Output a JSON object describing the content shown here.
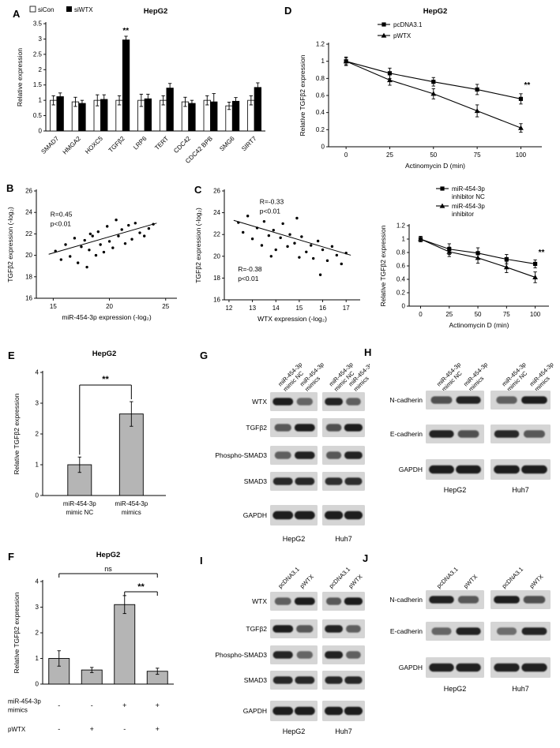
{
  "figure": {
    "background": "#ffffff",
    "bar_gray": "#b5b5b5",
    "ink": "#000000"
  },
  "panels": [
    {
      "id": "A",
      "letter": "A"
    },
    {
      "id": "B",
      "letter": "B"
    },
    {
      "id": "C",
      "letter": "C"
    },
    {
      "id": "D",
      "letter": "D"
    },
    {
      "id": "E",
      "letter": "E"
    },
    {
      "id": "F",
      "letter": "F"
    },
    {
      "id": "G",
      "letter": "G"
    },
    {
      "id": "H",
      "letter": "H"
    },
    {
      "id": "I",
      "letter": "I"
    },
    {
      "id": "J",
      "letter": "J"
    }
  ],
  "chart_data": [
    {
      "panel": "A",
      "type": "bar",
      "title": "HepG2",
      "ylabel": "Relative expression",
      "ylim": [
        0,
        3.5
      ],
      "yticks": [
        0,
        0.5,
        1,
        1.5,
        2,
        2.5,
        3,
        3.5
      ],
      "categories": [
        "SMAD7",
        "HMGA2",
        "HOXC5",
        "TGFβ2",
        "LRP6",
        "TERT",
        "CDC42",
        "CDC42 BPB",
        "SMG6",
        "SIRT7"
      ],
      "series": [
        {
          "name": "siCon",
          "fill": "#ffffff",
          "values": [
            1.0,
            0.95,
            1.0,
            1.0,
            1.0,
            1.0,
            0.95,
            1.0,
            0.82,
            1.0
          ],
          "errors": [
            0.15,
            0.15,
            0.18,
            0.15,
            0.2,
            0.15,
            0.15,
            0.15,
            0.12,
            0.15
          ]
        },
        {
          "name": "siWTX",
          "fill": "#000000",
          "values": [
            1.12,
            0.9,
            1.03,
            2.97,
            1.05,
            1.4,
            0.9,
            0.95,
            0.97,
            1.42
          ],
          "errors": [
            0.12,
            0.1,
            0.15,
            0.12,
            0.15,
            0.15,
            0.1,
            0.27,
            0.12,
            0.15
          ]
        }
      ],
      "sig": {
        "category_index": 3,
        "series_index": 1,
        "label": "**"
      }
    },
    {
      "panel": "B",
      "type": "scatter",
      "xlabel": "miR-454-3p expression (-log₂)",
      "ylabel": "TGFβ2 expression (-log₂)",
      "xlim": [
        13.5,
        26
      ],
      "xticks": [
        15,
        20,
        25
      ],
      "ylim": [
        16,
        26
      ],
      "yticks": [
        16,
        18,
        20,
        22,
        24,
        26
      ],
      "points": [
        [
          15.2,
          20.4
        ],
        [
          15.7,
          19.6
        ],
        [
          16.1,
          21.0
        ],
        [
          16.5,
          19.9
        ],
        [
          16.9,
          21.6
        ],
        [
          17.2,
          19.3
        ],
        [
          17.5,
          20.8
        ],
        [
          17.8,
          21.4
        ],
        [
          18.0,
          18.9
        ],
        [
          18.2,
          20.5
        ],
        [
          18.3,
          22.0
        ],
        [
          18.5,
          21.8
        ],
        [
          18.8,
          20.0
        ],
        [
          19.0,
          22.2
        ],
        [
          19.2,
          21.0
        ],
        [
          19.5,
          20.3
        ],
        [
          19.8,
          22.7
        ],
        [
          20.0,
          21.3
        ],
        [
          20.3,
          20.7
        ],
        [
          20.6,
          23.3
        ],
        [
          20.8,
          21.8
        ],
        [
          21.1,
          22.4
        ],
        [
          21.4,
          21.1
        ],
        [
          21.7,
          22.8
        ],
        [
          22.0,
          21.5
        ],
        [
          22.3,
          23.0
        ],
        [
          22.7,
          22.1
        ],
        [
          23.1,
          21.8
        ],
        [
          23.5,
          22.5
        ],
        [
          23.9,
          22.9
        ]
      ],
      "trend": [
        [
          14.6,
          20.1
        ],
        [
          24.2,
          23.0
        ]
      ],
      "annotations": [
        {
          "lines": [
            "R=0.45",
            "p<0.01"
          ]
        }
      ]
    },
    {
      "panel": "C",
      "type": "scatter",
      "xlabel": "WTX expression (-log₂)",
      "ylabel": "TGFβ2 expression (-log₂)",
      "xlim": [
        11.8,
        17.6
      ],
      "xticks": [
        12,
        13,
        14,
        15,
        16,
        17
      ],
      "ylim": [
        16,
        26
      ],
      "yticks": [
        16,
        18,
        20,
        22,
        24,
        26
      ],
      "points": [
        [
          12.4,
          23.1
        ],
        [
          12.6,
          22.2
        ],
        [
          12.8,
          23.7
        ],
        [
          13.0,
          21.6
        ],
        [
          13.2,
          22.6
        ],
        [
          13.4,
          21.0
        ],
        [
          13.5,
          23.2
        ],
        [
          13.7,
          21.9
        ],
        [
          13.8,
          20.0
        ],
        [
          13.9,
          22.4
        ],
        [
          14.0,
          20.6
        ],
        [
          14.2,
          21.7
        ],
        [
          14.3,
          23.0
        ],
        [
          14.5,
          20.9
        ],
        [
          14.6,
          22.0
        ],
        [
          14.8,
          21.2
        ],
        [
          14.9,
          23.5
        ],
        [
          15.0,
          19.9
        ],
        [
          15.1,
          21.8
        ],
        [
          15.3,
          20.4
        ],
        [
          15.5,
          21.0
        ],
        [
          15.6,
          19.8
        ],
        [
          15.8,
          21.4
        ],
        [
          15.9,
          18.3
        ],
        [
          16.0,
          20.6
        ],
        [
          16.2,
          19.6
        ],
        [
          16.4,
          20.9
        ],
        [
          16.6,
          20.1
        ],
        [
          16.8,
          19.3
        ],
        [
          17.0,
          20.3
        ]
      ],
      "trend": [
        [
          12.2,
          23.3
        ],
        [
          17.2,
          20.1
        ]
      ],
      "annotations": [
        {
          "lines": [
            "R=-0.33",
            "p<0.01"
          ]
        },
        {
          "lines": [
            "R=-0.38",
            "p<0.01"
          ]
        }
      ]
    },
    {
      "panel": "D",
      "type": "line",
      "title": "HepG2",
      "ylabel": "Relative TGFβ2 expression",
      "xlabel": "Actinomycin D (min)",
      "x": [
        0,
        25,
        50,
        75,
        100
      ],
      "xticks": [
        0,
        25,
        50,
        75,
        100
      ],
      "xlim": [
        -10,
        112
      ],
      "ylim": [
        0,
        1.2
      ],
      "yticks": [
        0,
        0.2,
        0.4,
        0.6,
        0.8,
        1,
        1.2
      ],
      "series": [
        {
          "name": "pcDNA3.1",
          "marker": "square",
          "values": [
            1.0,
            0.86,
            0.76,
            0.67,
            0.56
          ],
          "errors": [
            0.05,
            0.06,
            0.05,
            0.06,
            0.06
          ]
        },
        {
          "name": "pWTX",
          "marker": "triangle",
          "values": [
            1.0,
            0.78,
            0.62,
            0.42,
            0.22
          ],
          "errors": [
            0.04,
            0.06,
            0.06,
            0.07,
            0.05
          ]
        }
      ],
      "sig": {
        "x": 100,
        "y": 0.72,
        "label": "**"
      }
    },
    {
      "panel": "D2",
      "type": "line",
      "ylabel": "Relative TGFβ2 expression",
      "xlabel": "Actinomycin D (min)",
      "x": [
        0,
        25,
        50,
        75,
        100
      ],
      "xticks": [
        0,
        25,
        50,
        75,
        100
      ],
      "xlim": [
        -10,
        112
      ],
      "ylim": [
        0,
        1.2
      ],
      "yticks": [
        0,
        0.2,
        0.4,
        0.6,
        0.8,
        1,
        1.2
      ],
      "series": [
        {
          "name_lines": [
            "miR-454-3p",
            "inhibitor NC"
          ],
          "marker": "square",
          "values": [
            1.0,
            0.85,
            0.79,
            0.7,
            0.63
          ],
          "errors": [
            0.04,
            0.08,
            0.08,
            0.07,
            0.06
          ]
        },
        {
          "name_lines": [
            "miR-454-3p",
            "inhibitor"
          ],
          "marker": "triangle",
          "values": [
            1.0,
            0.81,
            0.72,
            0.58,
            0.43
          ],
          "errors": [
            0.04,
            0.07,
            0.08,
            0.08,
            0.08
          ]
        }
      ],
      "sig": {
        "x": 100,
        "y": 0.8,
        "label": "**"
      }
    },
    {
      "panel": "E",
      "type": "bar",
      "title": "HepG2",
      "ylabel": "Relative TGFβ2 expression",
      "ylim": [
        0,
        4
      ],
      "yticks": [
        0,
        1,
        2,
        3,
        4
      ],
      "bar_fill": "#b5b5b5",
      "categories": [
        [
          "miR-454-3p",
          "mimic NC"
        ],
        [
          "miR-454-3p",
          "mimics"
        ]
      ],
      "values": [
        1.0,
        2.65
      ],
      "errors": [
        0.25,
        0.4
      ],
      "brackets": [
        {
          "from": 0,
          "to": 1,
          "label": "**"
        }
      ]
    },
    {
      "panel": "F",
      "type": "bar",
      "title": "HepG2",
      "ylabel": "Relative TGFβ2 expression",
      "ylim": [
        0,
        4
      ],
      "yticks": [
        0,
        1,
        2,
        3,
        4
      ],
      "bar_fill": "#b5b5b5",
      "values": [
        1.0,
        0.55,
        3.1,
        0.5
      ],
      "errors": [
        0.3,
        0.1,
        0.35,
        0.12
      ],
      "brackets": [
        {
          "from": 0,
          "to": 3,
          "label": "ns"
        },
        {
          "from": 2,
          "to": 3,
          "label": "**"
        }
      ],
      "conditions": [
        {
          "label_lines": [
            "miR-454-3p",
            "mimics"
          ],
          "values": [
            "-",
            "-",
            "+",
            "+"
          ]
        },
        {
          "label_lines": [
            "pWTX"
          ],
          "values": [
            "-",
            "+",
            "-",
            "+"
          ]
        }
      ]
    }
  ],
  "blots": [
    {
      "panel": "G",
      "col_labels": [
        [
          "miR-454-3p",
          "mimic NC"
        ],
        [
          "miR-454-3p",
          "mimics"
        ],
        [
          "miR-454-3p",
          "mimic NC"
        ],
        [
          "miR-454-3p",
          "mimics"
        ]
      ],
      "groups": [
        "HepG2",
        "Huh7"
      ],
      "rows": [
        {
          "label": "WTX",
          "bands": [
            [
              0.95,
              0.4
            ],
            [
              0.9,
              0.45
            ]
          ]
        },
        {
          "label": "TGFβ2",
          "bands": [
            [
              0.5,
              0.95
            ],
            [
              0.55,
              0.95
            ]
          ]
        },
        {
          "label": "Phospho-SMAD3",
          "bands": [
            [
              0.45,
              0.92
            ],
            [
              0.5,
              0.9
            ]
          ]
        },
        {
          "label": "SMAD3",
          "bands": [
            [
              0.85,
              0.85
            ],
            [
              0.82,
              0.82
            ]
          ]
        },
        {
          "label": "GAPDH",
          "bands": [
            [
              0.95,
              0.95
            ],
            [
              0.95,
              0.95
            ]
          ]
        }
      ]
    },
    {
      "panel": "H",
      "col_labels": [
        [
          "miR-454-3p",
          "mimic NC"
        ],
        [
          "miR-454-3p",
          "mimics"
        ],
        [
          "miR-454-3p",
          "mimic NC"
        ],
        [
          "miR-454-3p",
          "mimics"
        ]
      ],
      "groups": [
        "HepG2",
        "Huh7"
      ],
      "rows": [
        {
          "label": "N-cadherin",
          "bands": [
            [
              0.55,
              0.9
            ],
            [
              0.45,
              0.95
            ]
          ]
        },
        {
          "label": "E-cadherin",
          "bands": [
            [
              0.9,
              0.55
            ],
            [
              0.85,
              0.5
            ]
          ]
        },
        {
          "label": "GAPDH",
          "bands": [
            [
              0.95,
              0.95
            ],
            [
              0.95,
              0.95
            ]
          ]
        }
      ]
    },
    {
      "panel": "I",
      "col_labels": [
        "pcDNA3.1",
        "pWTX",
        "pcDNA3.1",
        "pWTX"
      ],
      "groups": [
        "HepG2",
        "Huh7"
      ],
      "rows": [
        {
          "label": "WTX",
          "bands": [
            [
              0.45,
              0.95
            ],
            [
              0.5,
              0.95
            ]
          ]
        },
        {
          "label": "TGFβ2",
          "bands": [
            [
              0.95,
              0.5
            ],
            [
              0.9,
              0.45
            ]
          ]
        },
        {
          "label": "Phospho-SMAD3",
          "bands": [
            [
              0.88,
              0.4
            ],
            [
              0.92,
              0.45
            ]
          ]
        },
        {
          "label": "SMAD3",
          "bands": [
            [
              0.85,
              0.85
            ],
            [
              0.85,
              0.85
            ]
          ]
        },
        {
          "label": "GAPDH",
          "bands": [
            [
              0.95,
              0.95
            ],
            [
              0.95,
              0.95
            ]
          ]
        }
      ]
    },
    {
      "panel": "J",
      "col_labels": [
        "pcDNA3.1",
        "pWTX",
        "pcDNA3.1",
        "pWTX"
      ],
      "groups": [
        "HepG2",
        "Huh7"
      ],
      "rows": [
        {
          "label": "N-cadherin",
          "bands": [
            [
              0.92,
              0.5
            ],
            [
              0.95,
              0.55
            ]
          ]
        },
        {
          "label": "E-cadherin",
          "bands": [
            [
              0.4,
              0.9
            ],
            [
              0.35,
              0.88
            ]
          ]
        },
        {
          "label": "GAPDH",
          "bands": [
            [
              0.92,
              0.92
            ],
            [
              0.92,
              0.92
            ]
          ]
        }
      ]
    }
  ]
}
